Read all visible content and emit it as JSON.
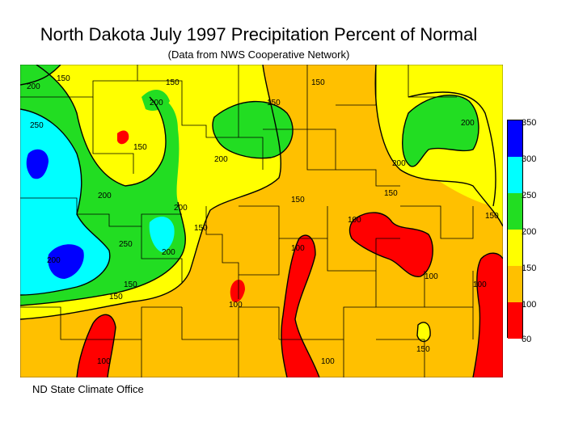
{
  "title": "North Dakota July 1997 Precipitation Percent of Normal",
  "subtitle": "(Data from NWS Cooperative Network)",
  "credit": "ND State Climate Office",
  "legend": {
    "bands": [
      {
        "label": "350",
        "color": "#0000ff"
      },
      {
        "label": "300",
        "color": "#00ffff"
      },
      {
        "label": "250",
        "color": "#22dd22"
      },
      {
        "label": "200",
        "color": "#ffff00"
      },
      {
        "label": "150",
        "color": "#ffc000"
      },
      {
        "label": "100",
        "color": "#ff0000"
      }
    ],
    "bottom_label": "60"
  },
  "contour_labels": [
    "200",
    "150",
    "150",
    "150",
    "200",
    "150",
    "200",
    "250",
    "150",
    "200",
    "200",
    "200",
    "150",
    "200",
    "150",
    "250",
    "200",
    "150",
    "150",
    "100",
    "100",
    "100",
    "150",
    "100",
    "100",
    "100",
    "150",
    "100",
    "200",
    "150"
  ],
  "colors": {
    "blue": "#0000ff",
    "cyan": "#00ffff",
    "green": "#22dd22",
    "yellow": "#ffff00",
    "orange": "#ffc000",
    "red": "#ff0000"
  }
}
